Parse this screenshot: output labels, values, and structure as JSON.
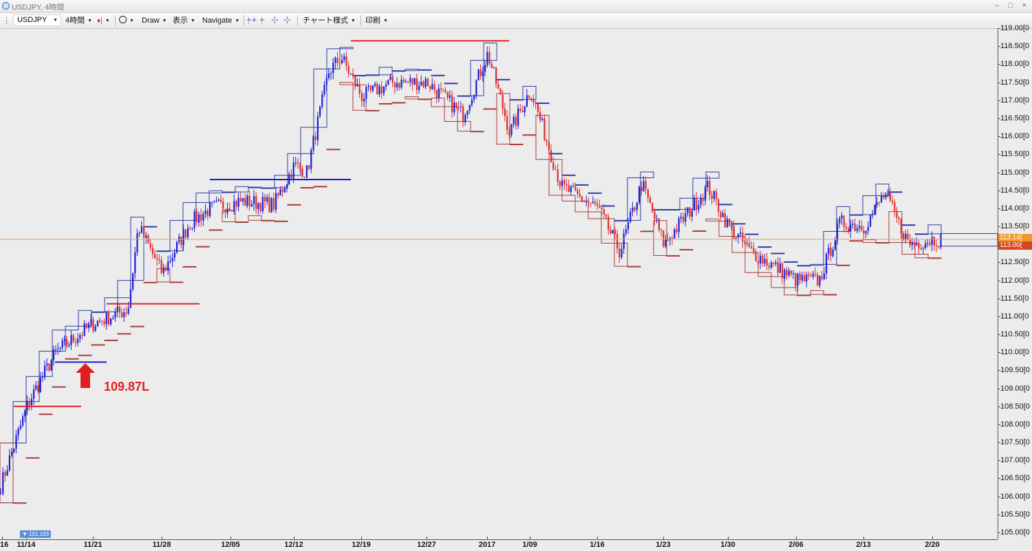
{
  "window": {
    "title": "USDJPY, 4時間",
    "buttons": [
      "–",
      "□",
      "×"
    ]
  },
  "toolbar": {
    "symbol": "USDJPY",
    "timeframe": "4時間",
    "draw": "Draw",
    "display": "表示",
    "navigate": "Navigate",
    "chart_style": "チャート様式",
    "print": "印刷"
  },
  "colors": {
    "bull": "#1a1ad6",
    "bear": "#e0282a",
    "bull_box": "#2a3aa8",
    "bear_box": "#a83a3a",
    "current_price_line": "#e8a060",
    "annotation_red": "#e02020",
    "annotation_blue": "#1a1acc"
  },
  "annotation": {
    "label": "109.87L"
  },
  "low_marker": "101.193",
  "current_price": {
    "upper_label": "113.14[",
    "lower_label": "113.00["
  },
  "chart_data": {
    "type": "candlestick",
    "symbol": "USDJPY",
    "timeframe": "4時間",
    "y_axis": {
      "min": 105.0,
      "max": 118.9,
      "labels": [
        "105.00[0",
        "105.50[0",
        "106.00[0",
        "106.50[0",
        "107.00[0",
        "107.50[0",
        "108.00[0",
        "108.50[0",
        "109.00[0",
        "109.50[0",
        "110.00[0",
        "110.50[0",
        "111.00[0",
        "111.50[0",
        "112.00[0",
        "112.50[0",
        "113.00[0",
        "113.50[0",
        "114.00[0",
        "114.50[0",
        "115.00[0",
        "115.50[0",
        "116.00[0",
        "116.50[0",
        "117.00[0",
        "117.50[0",
        "118.00[0",
        "118.50[0",
        "119.00[0"
      ]
    },
    "x_axis": {
      "labels": [
        "16",
        "11/14",
        "11/21",
        "11/28",
        "12/05",
        "12/12",
        "12/19",
        "12/27",
        "2017",
        "1/09",
        "1/16",
        "1/23",
        "1/30",
        "2/06",
        "2/13",
        "2/20"
      ]
    },
    "current_price": 113.14,
    "anchors": [
      {
        "date": "11/14",
        "price": 106.3
      },
      {
        "date": "11/16",
        "price": 108.6
      },
      {
        "date": "11/18",
        "price": 110.0
      },
      {
        "date": "11/21",
        "price": 110.8
      },
      {
        "date": "11/24",
        "price": 111.2
      },
      {
        "date": "11/25",
        "price": 113.5
      },
      {
        "date": "11/28",
        "price": 112.2
      },
      {
        "date": "11/30",
        "price": 113.6
      },
      {
        "date": "12/02",
        "price": 114.0
      },
      {
        "date": "12/06",
        "price": 114.2
      },
      {
        "date": "12/09",
        "price": 114.1
      },
      {
        "date": "12/12",
        "price": 115.2
      },
      {
        "date": "12/13",
        "price": 115.0
      },
      {
        "date": "12/15",
        "price": 117.8
      },
      {
        "date": "12/16",
        "price": 118.2
      },
      {
        "date": "12/19",
        "price": 117.1
      },
      {
        "date": "12/22",
        "price": 117.5
      },
      {
        "date": "12/27",
        "price": 117.5
      },
      {
        "date": "12/30",
        "price": 116.6
      },
      {
        "date": "1/03",
        "price": 118.3
      },
      {
        "date": "1/05",
        "price": 116.1
      },
      {
        "date": "1/09",
        "price": 117.3
      },
      {
        "date": "1/12",
        "price": 114.6
      },
      {
        "date": "1/16",
        "price": 114.0
      },
      {
        "date": "1/18",
        "price": 112.8
      },
      {
        "date": "1/20",
        "price": 114.7
      },
      {
        "date": "1/23",
        "price": 113.0
      },
      {
        "date": "1/27",
        "price": 114.6
      },
      {
        "date": "1/30",
        "price": 113.5
      },
      {
        "date": "2/01",
        "price": 112.8
      },
      {
        "date": "2/06",
        "price": 112.0
      },
      {
        "date": "2/08",
        "price": 112.0
      },
      {
        "date": "2/10",
        "price": 113.6
      },
      {
        "date": "2/13",
        "price": 113.5
      },
      {
        "date": "2/15",
        "price": 114.4
      },
      {
        "date": "2/17",
        "price": 113.0
      },
      {
        "date": "2/20",
        "price": 113.14
      }
    ],
    "horizontal_lines": [
      {
        "color": "red",
        "price": 108.5,
        "from": "11/15",
        "to": "11/20"
      },
      {
        "color": "blue",
        "price": 109.73,
        "from": "11/18",
        "to": "11/22"
      },
      {
        "color": "red",
        "price": 111.35,
        "from": "11/22",
        "to": "12/01"
      },
      {
        "color": "blue",
        "price": 114.8,
        "from": "12/02",
        "to": "12/17"
      },
      {
        "color": "red",
        "price": 118.65,
        "from": "12/17",
        "to": "1/05"
      },
      {
        "color": "orange",
        "price": 113.14,
        "from": "11/14",
        "to": "2/22"
      }
    ]
  }
}
